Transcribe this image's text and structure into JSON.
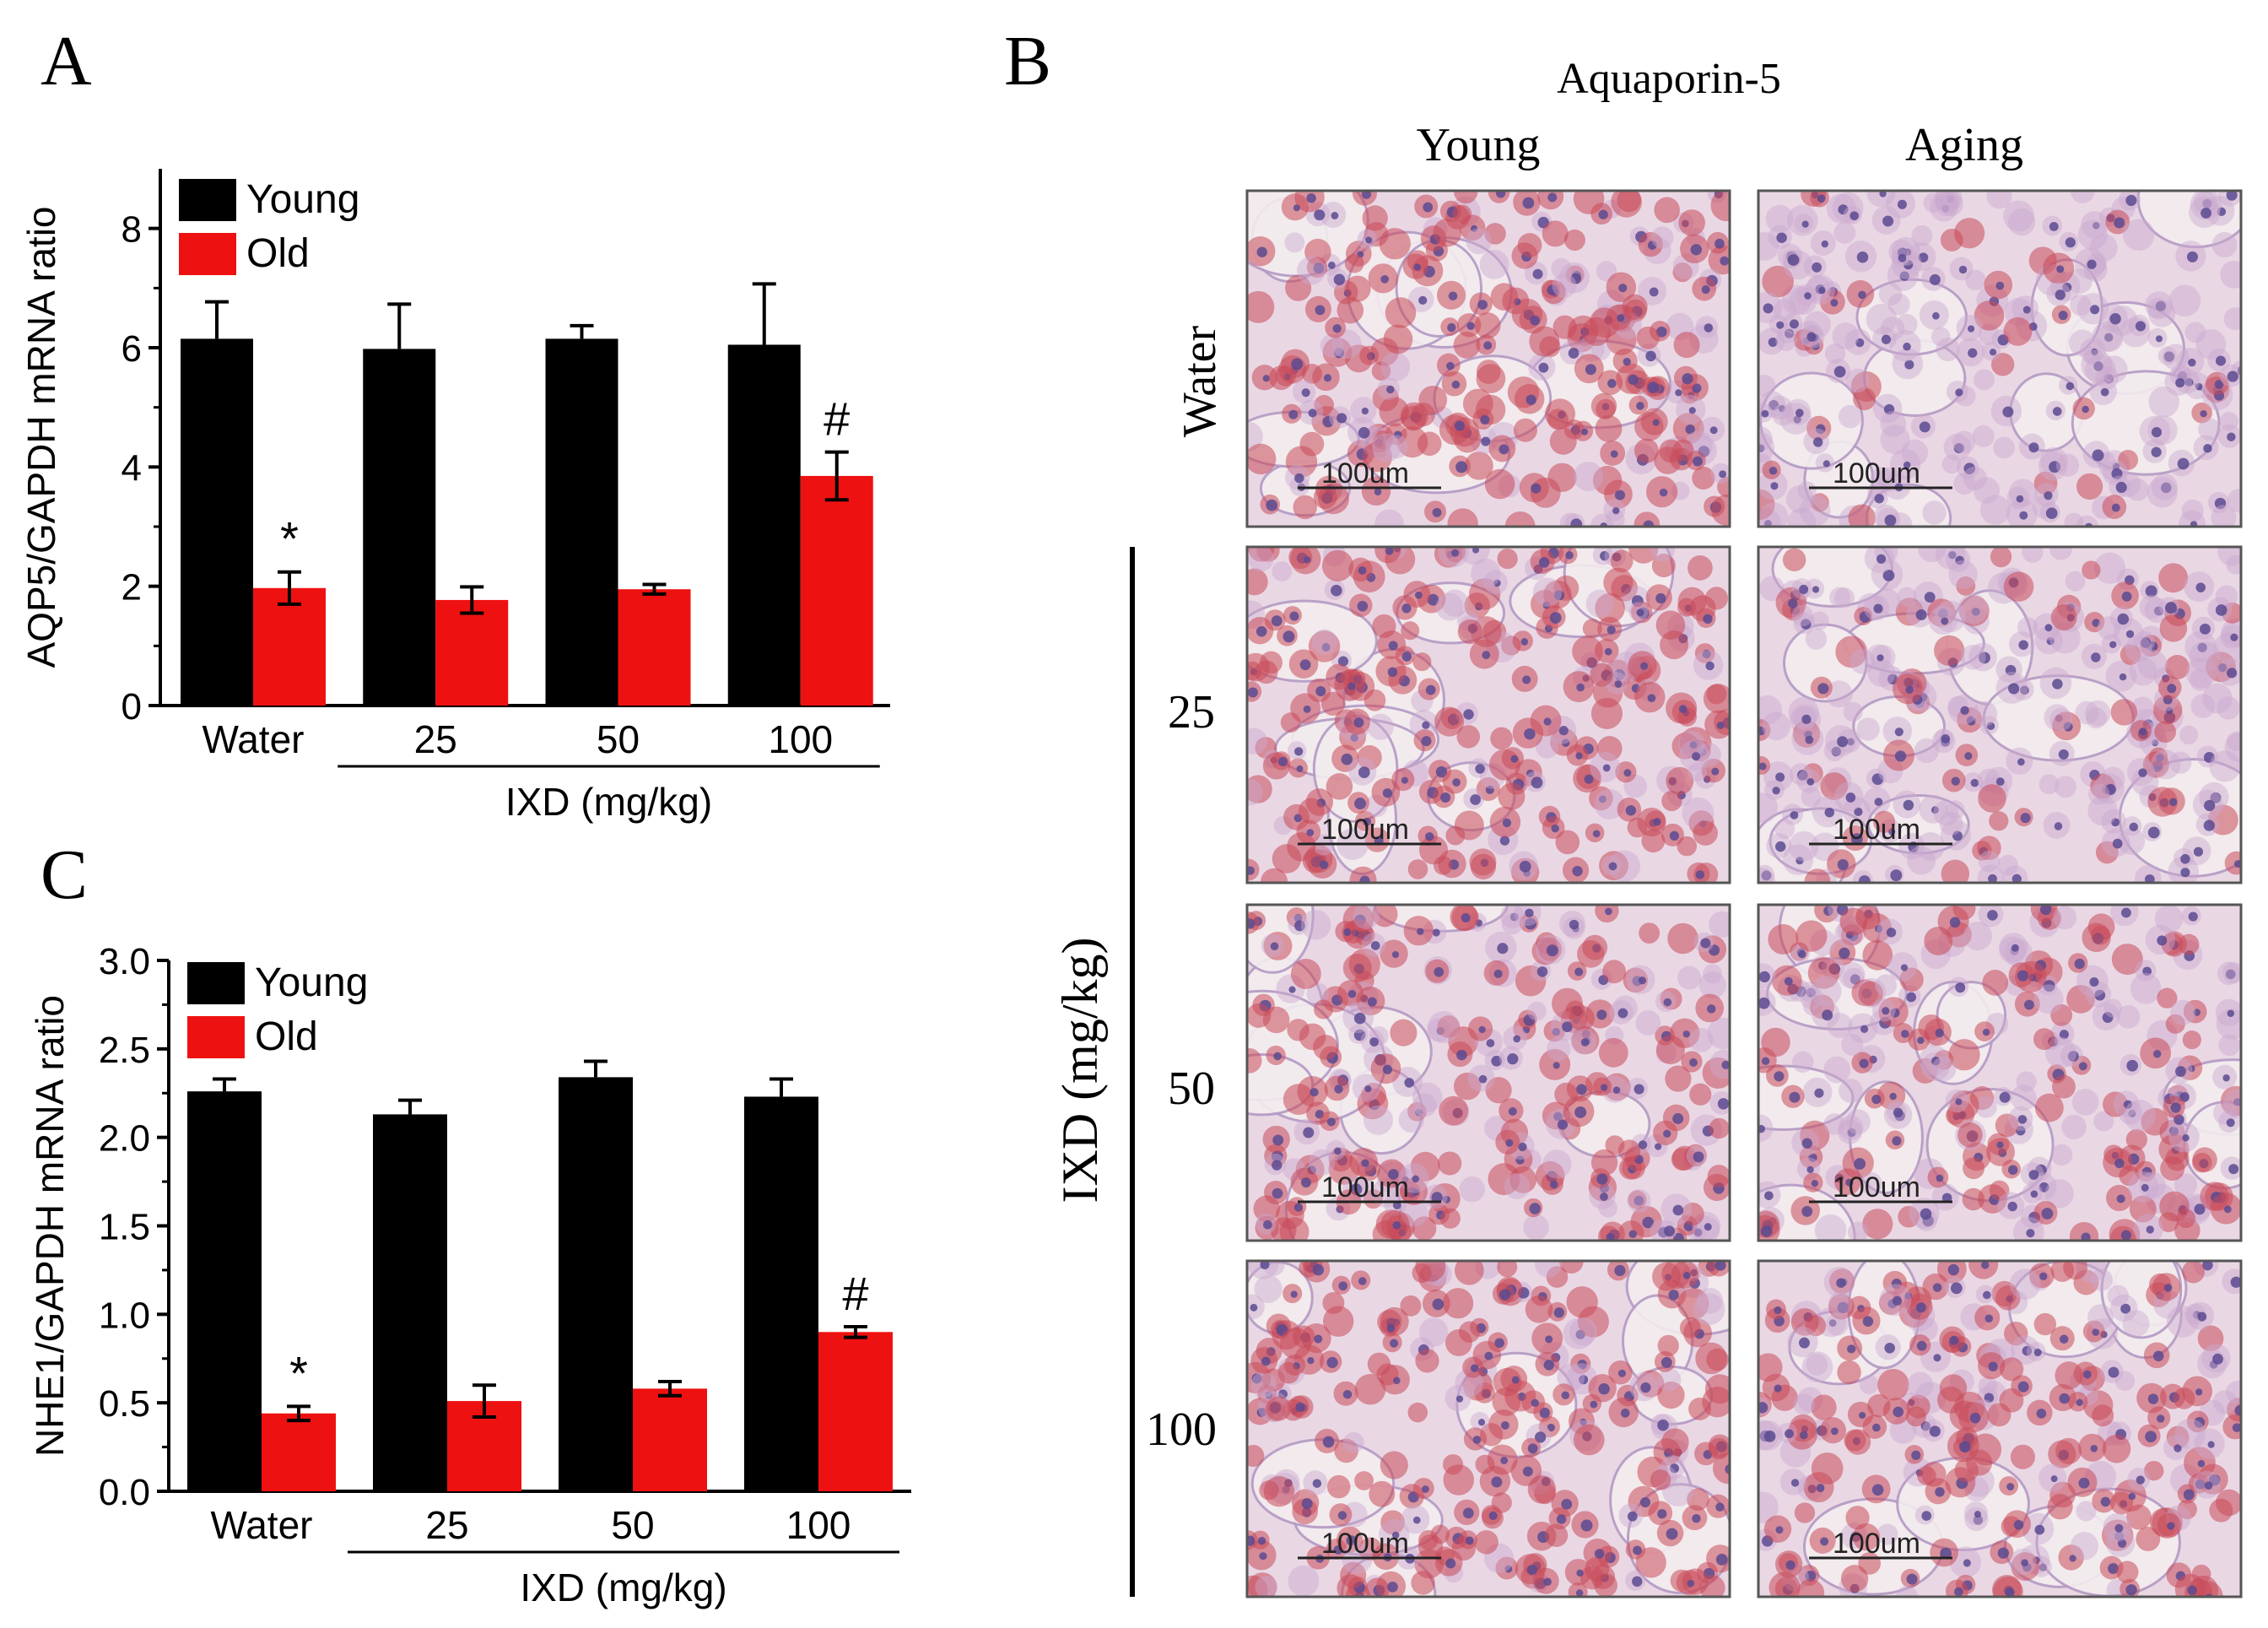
{
  "panels": {
    "A": "A",
    "B": "B",
    "C": "C"
  },
  "colors": {
    "young": "#000000",
    "old": "#ee1111",
    "tissue_base": "#e8c4cc",
    "tissue_stain": "#c84a5a",
    "nucleus": "#5a4a90"
  },
  "chart_data": [
    {
      "id": "A",
      "type": "bar",
      "title": "",
      "ylabel": "AQP5/GAPDH mRNA ratio",
      "xlabel": "IXD (mg/kg)",
      "categories": [
        "Water",
        "25",
        "50",
        "100"
      ],
      "ylim": [
        0,
        9
      ],
      "yticks": [
        0,
        2,
        4,
        6,
        8
      ],
      "ytick_labels": [
        "0",
        "2",
        "4",
        "6",
        "8"
      ],
      "series": [
        {
          "name": "Young",
          "values": [
            6.15,
            5.98,
            6.15,
            6.05
          ],
          "errors": [
            0.62,
            0.75,
            0.22,
            1.02
          ]
        },
        {
          "name": "Old",
          "values": [
            1.97,
            1.77,
            1.95,
            3.85
          ],
          "errors": [
            0.27,
            0.22,
            0.08,
            0.4
          ]
        }
      ],
      "annotations": [
        {
          "text": "*",
          "category": "Water",
          "series": "Old"
        },
        {
          "text": "#",
          "category": "100",
          "series": "Old"
        }
      ]
    },
    {
      "id": "C",
      "type": "bar",
      "title": "",
      "ylabel": "NHE1/GAPDH mRNA ratio",
      "xlabel": "IXD (mg/kg)",
      "categories": [
        "Water",
        "25",
        "50",
        "100"
      ],
      "ylim": [
        0,
        3.0
      ],
      "yticks": [
        0,
        0.5,
        1.0,
        1.5,
        2.0,
        2.5,
        3.0
      ],
      "ytick_labels": [
        "0.0",
        "0.5",
        "1.0",
        "1.5",
        "2.0",
        "2.5",
        "3.0"
      ],
      "series": [
        {
          "name": "Young",
          "values": [
            2.26,
            2.13,
            2.34,
            2.23
          ],
          "errors": [
            0.07,
            0.08,
            0.09,
            0.1
          ]
        },
        {
          "name": "Old",
          "values": [
            0.44,
            0.51,
            0.58,
            0.9
          ],
          "errors": [
            0.04,
            0.09,
            0.04,
            0.03
          ]
        }
      ],
      "annotations": [
        {
          "text": "*",
          "category": "Water",
          "series": "Old"
        },
        {
          "text": "#",
          "category": "100",
          "series": "Old"
        }
      ]
    }
  ],
  "micrographs": {
    "title": "Aquaporin-5",
    "columns": [
      "Young",
      "Aging"
    ],
    "rows": [
      "Water",
      "25",
      "50",
      "100"
    ],
    "group_label": "IXD (mg/kg)",
    "scale_bar": "100um",
    "images": [
      {
        "row": "Water",
        "col": "Young",
        "stain": 0.7
      },
      {
        "row": "Water",
        "col": "Aging",
        "stain": 0.15
      },
      {
        "row": "25",
        "col": "Young",
        "stain": 0.7
      },
      {
        "row": "25",
        "col": "Aging",
        "stain": 0.25
      },
      {
        "row": "50",
        "col": "Young",
        "stain": 0.6
      },
      {
        "row": "50",
        "col": "Aging",
        "stain": 0.45
      },
      {
        "row": "100",
        "col": "Young",
        "stain": 0.75
      },
      {
        "row": "100",
        "col": "Aging",
        "stain": 0.6
      }
    ]
  }
}
